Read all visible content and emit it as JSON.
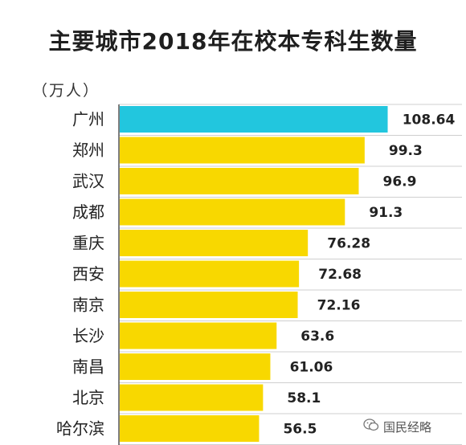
{
  "chart_data": {
    "type": "bar",
    "orientation": "horizontal",
    "title": "主要城市2018年在校本专科生数量",
    "unit": "（万人）",
    "categories": [
      "广州",
      "郑州",
      "武汉",
      "成都",
      "重庆",
      "西安",
      "南京",
      "长沙",
      "南昌",
      "北京",
      "哈尔滨"
    ],
    "values": [
      108.64,
      99.3,
      96.9,
      91.3,
      76.28,
      72.68,
      72.16,
      63.6,
      61.06,
      58.1,
      56.5
    ],
    "value_labels": [
      "108.64",
      "99.3",
      "96.9",
      "91.3",
      "76.28",
      "72.68",
      "72.16",
      "63.6",
      "61.06",
      "58.1",
      "56.5"
    ],
    "colors": {
      "highlight": "#22c6de",
      "bar": "#f8d800",
      "label_bg": "#ffffff",
      "grid": "#cfcfcf",
      "axis": "#555555"
    },
    "highlight_index": 0,
    "xlim": [
      0,
      120
    ],
    "grid": true
  },
  "watermark": {
    "text": "国民经略",
    "icon": "wechat-icon"
  }
}
